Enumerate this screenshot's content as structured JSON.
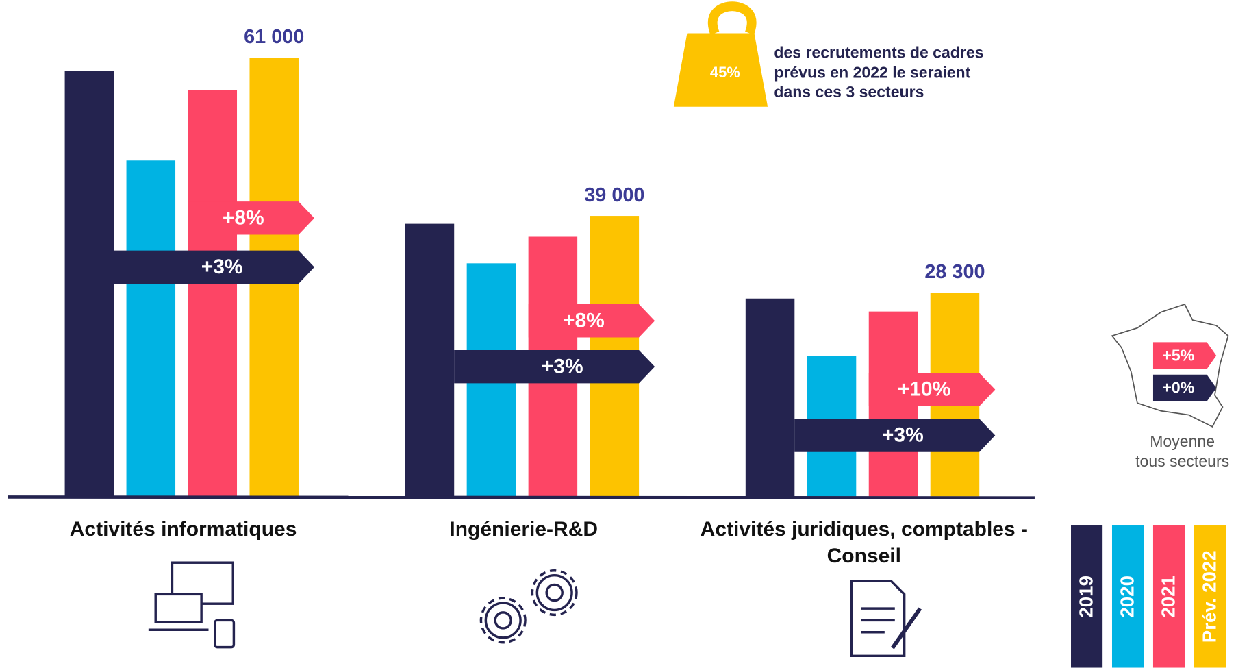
{
  "chart_data": {
    "type": "bar",
    "categories": [
      "Activités informatiques",
      "Ingénierie-R&D",
      "Activités juridiques, comptables - Conseil"
    ],
    "series": [
      {
        "name": "2019",
        "color": "#24234f",
        "values": [
          59200,
          37900,
          27500
        ]
      },
      {
        "name": "2020",
        "color": "#00b3e3",
        "values": [
          46700,
          32400,
          19500
        ]
      },
      {
        "name": "2021",
        "color": "#fd4565",
        "values": [
          56500,
          36100,
          25700
        ]
      },
      {
        "name": "Prév. 2022",
        "color": "#fdc300",
        "values": [
          61000,
          39000,
          28300
        ],
        "value_labels": [
          "61 000",
          "39 000",
          "28 300"
        ]
      }
    ],
    "annotations": [
      [
        "+8%",
        "+3%"
      ],
      [
        "+8%",
        "+3%"
      ],
      [
        "+10%",
        "+3%"
      ]
    ]
  },
  "share": {
    "value": "45%",
    "lines": [
      "des recrutements de cadres",
      "prévus en 2022 le seraient",
      "dans ces 3 secteurs"
    ]
  },
  "average": {
    "vs_2021": "+5%",
    "vs_2019": "+0%",
    "label": [
      "Moyenne",
      "tous secteurs"
    ]
  }
}
